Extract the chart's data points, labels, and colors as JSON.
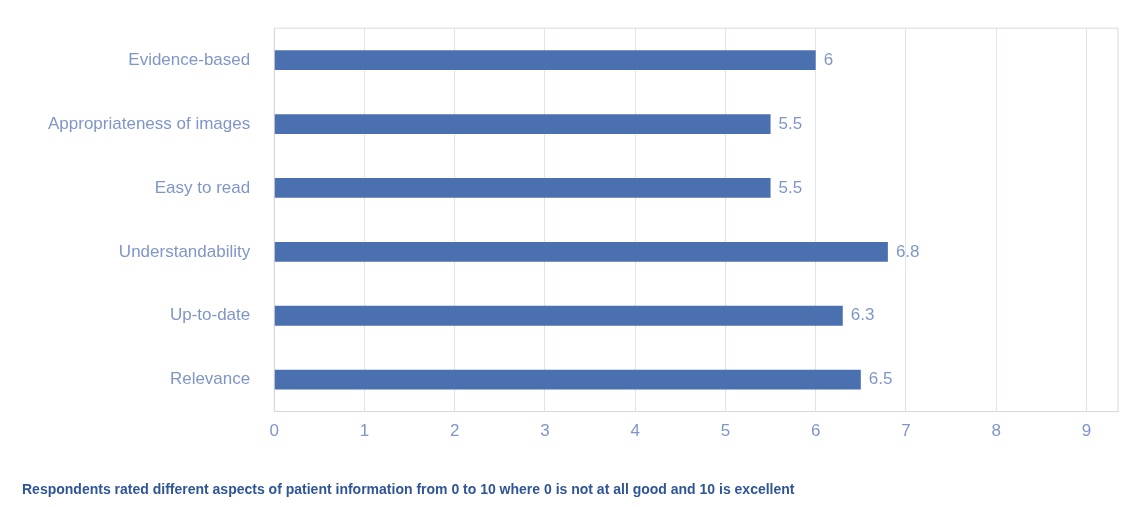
{
  "chart_data": {
    "type": "bar",
    "orientation": "horizontal",
    "categories": [
      "Evidence-based",
      "Appropriateness of images",
      "Easy to read",
      "Understandability",
      "Up-to-date",
      "Relevance"
    ],
    "values": [
      6,
      5.5,
      5.5,
      6.8,
      6.3,
      6.5
    ],
    "color": "#4a70b0",
    "xlim": [
      0,
      9.35
    ],
    "xticks": [
      0,
      1,
      2,
      3,
      4,
      5,
      6,
      7,
      8,
      9
    ],
    "grid": "x",
    "data_labels": true,
    "legend": false,
    "annotations": [
      "Respondents rated different aspects of patient information from 0 to 10 where 0 is not at all good and 10 is excellent"
    ]
  }
}
